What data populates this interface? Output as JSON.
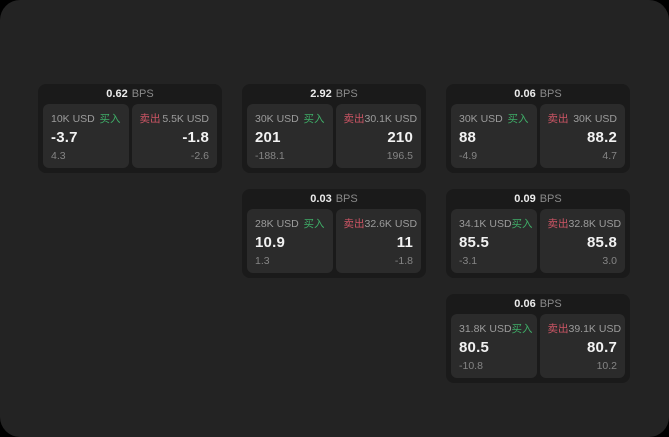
{
  "labels": {
    "buy": "买入",
    "sell": "卖出",
    "bps_unit": "BPS"
  },
  "colors": {
    "window_bg": "#232323",
    "outer_bg": "#000000",
    "card_bg": "#1a1a1a",
    "panel_bg": "#2b2b2b",
    "buy_green": "#3fae68",
    "sell_red": "#cd5565",
    "primary_text": "#f2f2f2",
    "secondary_text": "#9c9c9c"
  },
  "cards": [
    {
      "bps": "0.62",
      "buy": {
        "amount": "10K USD",
        "value": "-3.7",
        "delta": "4.3"
      },
      "sell": {
        "amount": "5.5K USD",
        "value": "-1.8",
        "delta": "-2.6"
      }
    },
    {
      "bps": "2.92",
      "buy": {
        "amount": "30K USD",
        "value": "201",
        "delta": "-188.1"
      },
      "sell": {
        "amount": "30.1K USD",
        "value": "210",
        "delta": "196.5"
      }
    },
    {
      "bps": "0.06",
      "buy": {
        "amount": "30K USD",
        "value": "88",
        "delta": "-4.9"
      },
      "sell": {
        "amount": "30K USD",
        "value": "88.2",
        "delta": "4.7"
      }
    },
    {
      "bps": "0.03",
      "buy": {
        "amount": "28K USD",
        "value": "10.9",
        "delta": "1.3"
      },
      "sell": {
        "amount": "32.6K USD",
        "value": "11",
        "delta": "-1.8"
      }
    },
    {
      "bps": "0.09",
      "buy": {
        "amount": "34.1K USD",
        "value": "85.5",
        "delta": "-3.1"
      },
      "sell": {
        "amount": "32.8K USD",
        "value": "85.8",
        "delta": "3.0"
      }
    },
    {
      "bps": "0.06",
      "buy": {
        "amount": "31.8K USD",
        "value": "80.5",
        "delta": "-10.8"
      },
      "sell": {
        "amount": "39.1K USD",
        "value": "80.7",
        "delta": "10.2"
      }
    }
  ]
}
